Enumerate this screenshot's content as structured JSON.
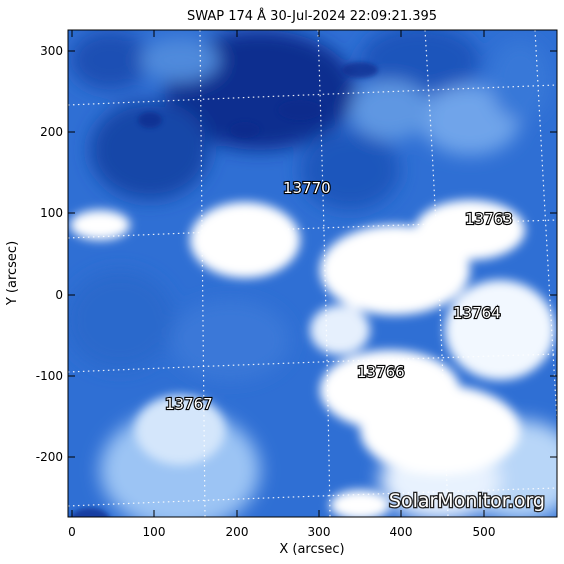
{
  "title": "SWAP 174 Å 30-Jul-2024 22:09:21.395",
  "xlabel": "X (arcsec)",
  "ylabel": "Y (arcsec)",
  "x_ticks": [
    "0",
    "100",
    "200",
    "300",
    "400",
    "500"
  ],
  "y_ticks": [
    "300",
    "200",
    "100",
    "0",
    "-100",
    "-200"
  ],
  "active_regions": [
    "13770",
    "13763",
    "13764",
    "13766",
    "13767"
  ],
  "watermark": "SolarMonitor.org",
  "colors": {
    "deep": "#0a2a8c",
    "mid": "#3a78d8",
    "light": "#9cc4f4",
    "white": "#ffffff"
  }
}
